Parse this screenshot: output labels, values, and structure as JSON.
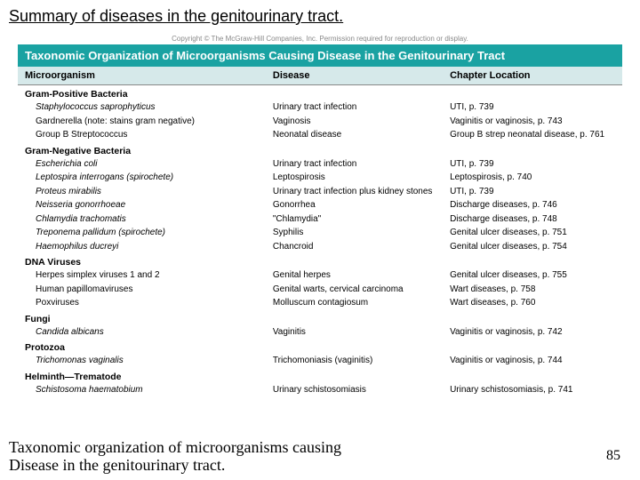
{
  "slide": {
    "title": "Summary of diseases in the genitourinary tract.",
    "caption_l1": "Taxonomic organization of microorganisms causing",
    "caption_l2": "Disease in the genitourinary tract.",
    "page_number": "85"
  },
  "table": {
    "copyright": "Copyright © The McGraw-Hill Companies, Inc. Permission required for reproduction or display.",
    "banner": "Taxonomic Organization of Microorganisms Causing Disease in the Genitourinary Tract",
    "banner_bg": "#1aa2a2",
    "header_bg": "#d6e9ea",
    "headers": {
      "c1": "Microorganism",
      "c2": "Disease",
      "c3": "Chapter Location"
    },
    "sections": [
      {
        "title": "Gram-Positive Bacteria",
        "rows": [
          {
            "c1": "Staphylococcus saprophyticus",
            "c2": "Urinary tract infection",
            "c3": "UTI, p. 739"
          },
          {
            "c1": "Gardnerella (note: stains gram negative)",
            "plain": true,
            "c2": "Vaginosis",
            "c3": "Vaginitis or vaginosis, p. 743"
          },
          {
            "c1": "Group B Streptococcus",
            "plain": true,
            "c2": "Neonatal disease",
            "c3": "Group B strep neonatal disease, p. 761"
          }
        ]
      },
      {
        "title": "Gram-Negative Bacteria",
        "rows": [
          {
            "c1": "Escherichia coli",
            "c2": "Urinary tract infection",
            "c3": "UTI, p. 739"
          },
          {
            "c1": "Leptospira interrogans (spirochete)",
            "c2": "Leptospirosis",
            "c3": "Leptospirosis, p. 740"
          },
          {
            "c1": "Proteus mirabilis",
            "c2": "Urinary tract infection plus kidney stones",
            "c3": "UTI, p. 739"
          },
          {
            "c1": "Neisseria gonorrhoeae",
            "c2": "Gonorrhea",
            "c3": "Discharge diseases, p. 746"
          },
          {
            "c1": "Chlamydia trachomatis",
            "c2": "\"Chlamydia\"",
            "c3": "Discharge diseases, p. 748"
          },
          {
            "c1": "Treponema pallidum (spirochete)",
            "c2": "Syphilis",
            "c3": "Genital ulcer diseases, p. 751"
          },
          {
            "c1": "Haemophilus ducreyi",
            "c2": "Chancroid",
            "c3": "Genital ulcer diseases, p. 754"
          }
        ]
      },
      {
        "title": "DNA Viruses",
        "rows": [
          {
            "c1": "Herpes simplex viruses 1 and 2",
            "plain": true,
            "c2": "Genital herpes",
            "c3": "Genital ulcer diseases, p. 755"
          },
          {
            "c1": "Human papillomaviruses",
            "plain": true,
            "c2": "Genital warts, cervical carcinoma",
            "c3": "Wart diseases, p. 758"
          },
          {
            "c1": "Poxviruses",
            "plain": true,
            "c2": "Molluscum contagiosum",
            "c3": "Wart diseases, p. 760"
          }
        ]
      },
      {
        "title": "Fungi",
        "rows": [
          {
            "c1": "Candida albicans",
            "c2": "Vaginitis",
            "c3": "Vaginitis or vaginosis, p. 742"
          }
        ]
      },
      {
        "title": "Protozoa",
        "rows": [
          {
            "c1": "Trichomonas vaginalis",
            "c2": "Trichomoniasis (vaginitis)",
            "c3": "Vaginitis or vaginosis, p. 744"
          }
        ]
      },
      {
        "title": "Helminth—Trematode",
        "rows": [
          {
            "c1": "Schistosoma haematobium",
            "c2": "Urinary schistosomiasis",
            "c3": "Urinary schistosomiasis, p. 741"
          }
        ]
      }
    ]
  }
}
